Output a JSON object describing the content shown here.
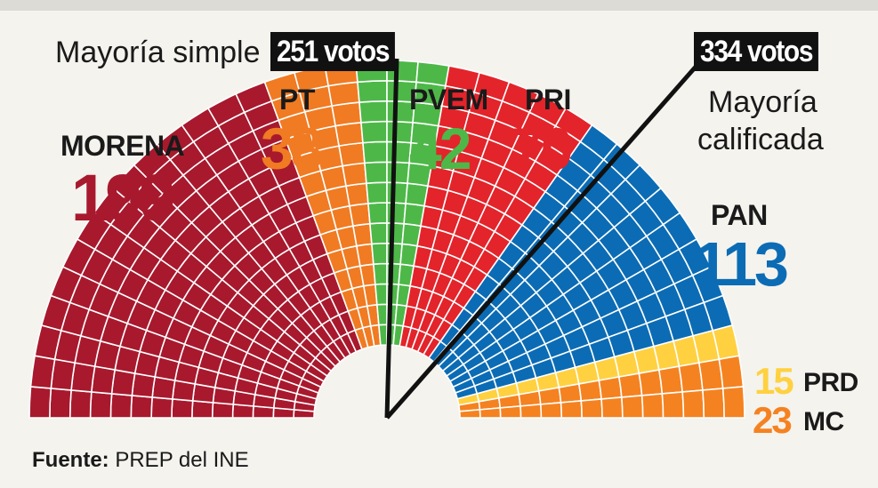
{
  "chart_data": {
    "type": "parliament",
    "total_seats": 500,
    "parties": [
      {
        "name": "MORENA",
        "seats": 199,
        "color": "#a8192e"
      },
      {
        "name": "PT",
        "seats": 38,
        "color": "#f07b22"
      },
      {
        "name": "PVEM",
        "seats": 42,
        "color": "#4db848"
      },
      {
        "name": "PRI",
        "seats": 70,
        "color": "#e3242b"
      },
      {
        "name": "PAN",
        "seats": 113,
        "color": "#0b6cb5"
      },
      {
        "name": "PRD",
        "seats": 15,
        "color": "#ffd140"
      },
      {
        "name": "MC",
        "seats": 23,
        "color": "#f58220"
      }
    ],
    "thresholds": [
      {
        "label": "Mayoría simple",
        "value_label": "251 votos",
        "seats": 251
      },
      {
        "label_line1": "Mayoría",
        "label_line2": "calificada",
        "value_label": "334 votos",
        "seats": 334
      }
    ]
  },
  "source": {
    "prefix": "Fuente:",
    "text": " PREP del INE"
  }
}
